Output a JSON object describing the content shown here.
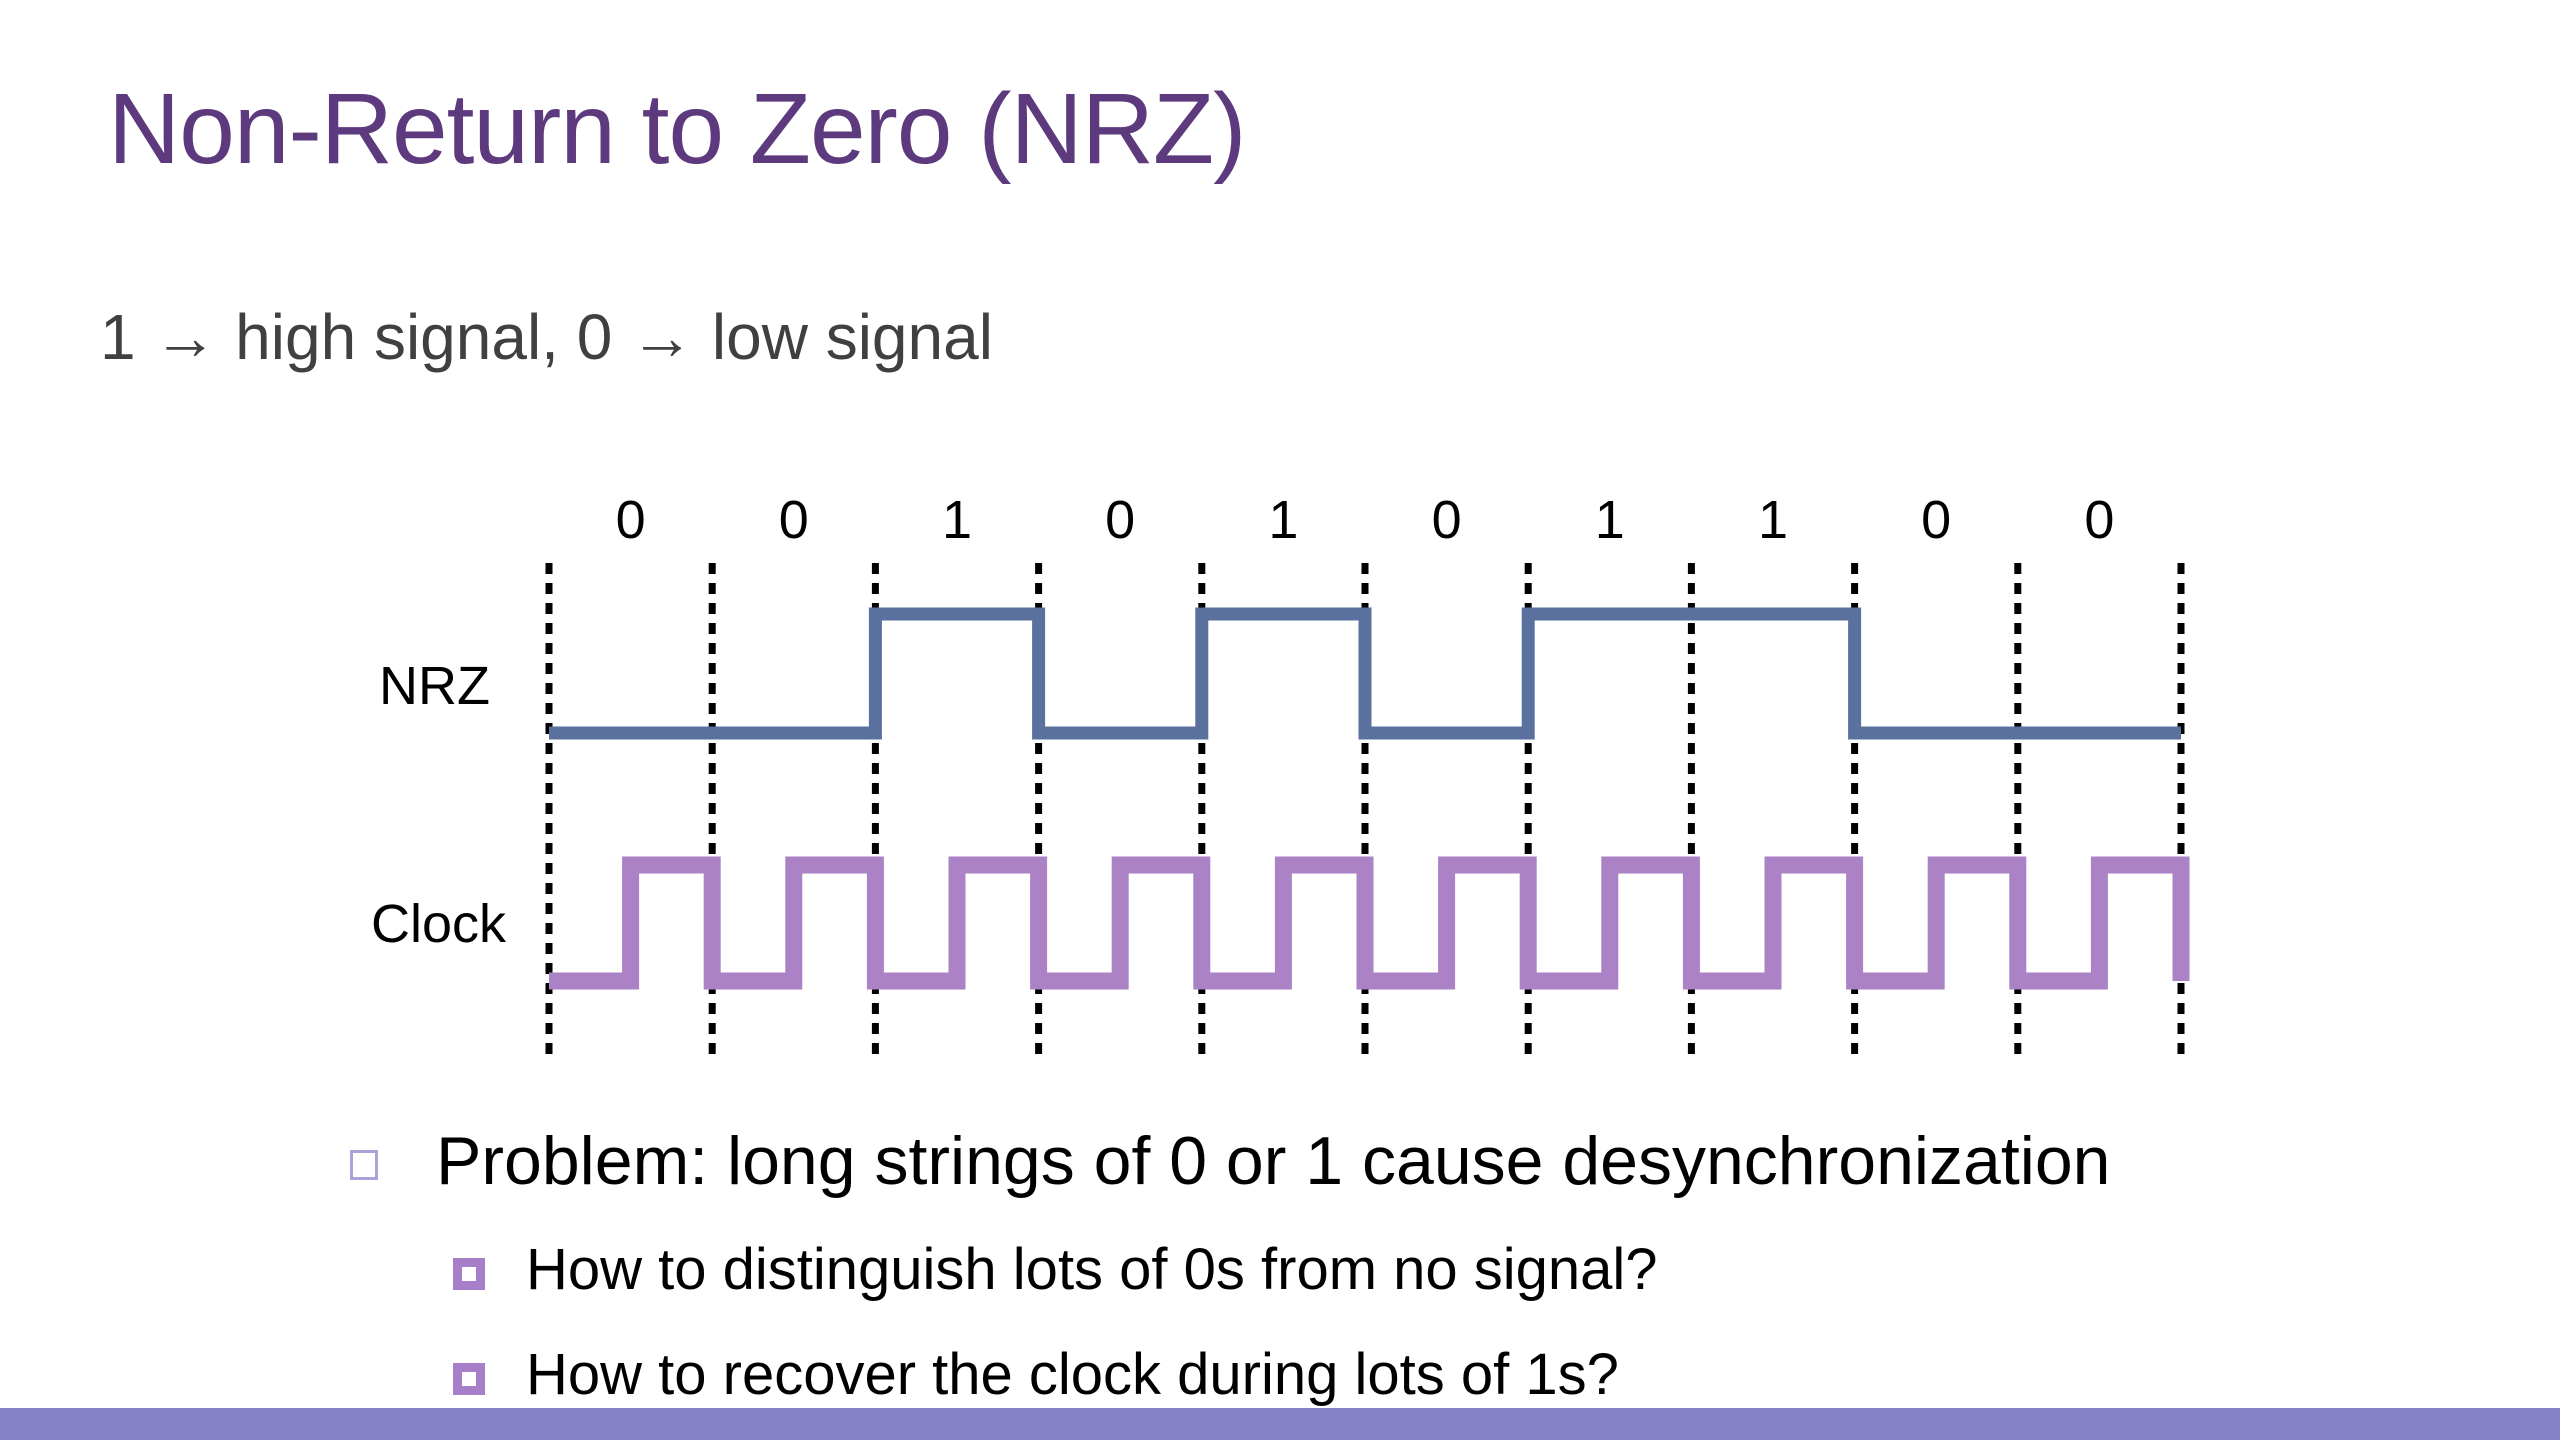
{
  "slide": {
    "title": "Non-Return to Zero (NRZ)",
    "subtitle": "1 → high signal, 0 → low signal",
    "diagram": {
      "bits": [
        "0",
        "0",
        "1",
        "0",
        "1",
        "0",
        "1",
        "1",
        "0",
        "0"
      ],
      "nrz_label": "NRZ",
      "clock_label": "Clock",
      "nrz_color": "#5a71a0",
      "clock_color": "#ab82c5"
    },
    "bullets": [
      {
        "text": "Problem: long strings of 0 or 1 cause desynchronization",
        "sub": [
          {
            "text": "How to distinguish lots of 0s from no signal?"
          },
          {
            "text": "How to recover the clock during lots of 1s?"
          }
        ]
      }
    ],
    "footer_color": "#8482c4"
  }
}
